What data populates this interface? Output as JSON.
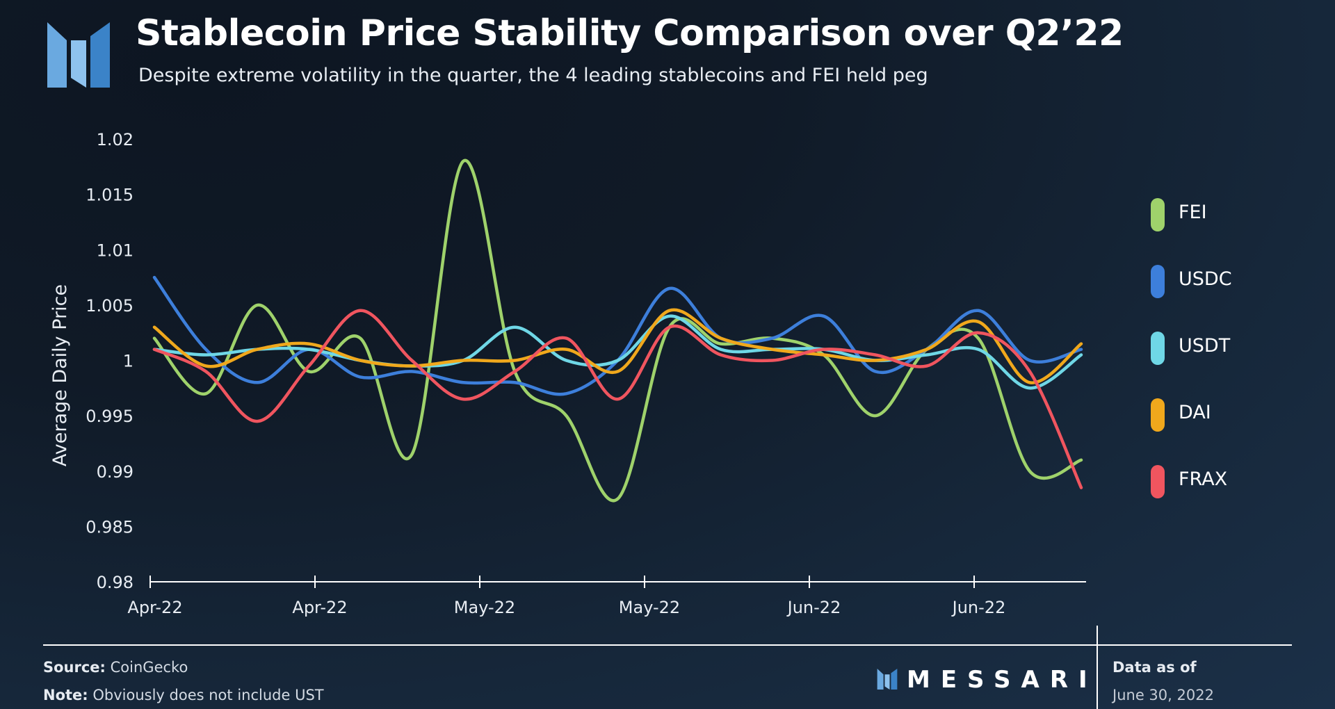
{
  "header": {
    "title": "Stablecoin Price Stability Comparison over Q2’22",
    "subtitle": "Despite extreme volatility in the quarter, the 4 leading stablecoins and FEI held peg",
    "logo_icon": "messari-m-logo-icon"
  },
  "footer": {
    "source_label": "Source:",
    "source_value": "CoinGecko",
    "note_label": "Note:",
    "note_value": "Obviously does not include UST",
    "brand": "MESSARI",
    "data_as_of_label": "Data as of",
    "data_as_of_value": "June 30, 2022"
  },
  "chart_data": {
    "type": "line",
    "title": "Stablecoin Price Stability Comparison over Q2’22",
    "xlabel": "",
    "ylabel": "Average Daily Price",
    "x_tick_labels": [
      "Apr-22",
      "Apr-22",
      "May-22",
      "May-22",
      "Jun-22",
      "Jun-22"
    ],
    "y_ticks": [
      "0.98",
      "0.985",
      "0.99",
      "0.995",
      "1",
      "1.005",
      "1.01",
      "1.015",
      "1.02"
    ],
    "ylim": [
      0.98,
      1.02
    ],
    "x": [
      "2022-04-01",
      "2022-04-06",
      "2022-04-11",
      "2022-04-16",
      "2022-04-21",
      "2022-04-26",
      "2022-05-01",
      "2022-05-06",
      "2022-05-11",
      "2022-05-16",
      "2022-05-21",
      "2022-05-26",
      "2022-05-31",
      "2022-06-05",
      "2022-06-10",
      "2022-06-15",
      "2022-06-20",
      "2022-06-25",
      "2022-06-30"
    ],
    "grid": false,
    "legend_position": "right",
    "series": [
      {
        "name": "FEI",
        "color": "#9fd26b",
        "values": [
          1.002,
          0.997,
          1.005,
          0.999,
          1.002,
          0.9915,
          1.018,
          0.999,
          0.995,
          0.9875,
          1.003,
          1.0015,
          1.002,
          1.0005,
          0.995,
          1.001,
          1.002,
          0.99,
          0.991
        ]
      },
      {
        "name": "USDC",
        "color": "#3d7fdb",
        "values": [
          1.0075,
          1.001,
          0.998,
          1.001,
          0.9985,
          0.999,
          0.998,
          0.998,
          0.997,
          1.0,
          1.0065,
          1.002,
          1.002,
          1.004,
          0.999,
          1.001,
          1.0045,
          1.0,
          1.001
        ]
      },
      {
        "name": "USDT",
        "color": "#6fd7e6",
        "values": [
          1.001,
          1.0005,
          1.001,
          1.001,
          1.0,
          0.9995,
          1.0,
          1.003,
          1.0,
          1.0,
          1.004,
          1.001,
          1.001,
          1.001,
          1.0,
          1.0005,
          1.001,
          0.9975,
          1.0005
        ]
      },
      {
        "name": "DAI",
        "color": "#f0a81c",
        "values": [
          1.003,
          0.9995,
          1.001,
          1.0015,
          1.0,
          0.9995,
          1.0,
          1.0,
          1.001,
          0.999,
          1.0045,
          1.002,
          1.001,
          1.0005,
          1.0,
          1.001,
          1.0035,
          0.998,
          1.0015
        ]
      },
      {
        "name": "FRAX",
        "color": "#f0555f",
        "values": [
          1.001,
          0.999,
          0.9945,
          0.9995,
          1.0045,
          1.0,
          0.9965,
          0.999,
          1.002,
          0.9965,
          1.003,
          1.0005,
          1.0,
          1.001,
          1.0005,
          0.9995,
          1.0025,
          0.999,
          0.9885
        ]
      }
    ]
  }
}
